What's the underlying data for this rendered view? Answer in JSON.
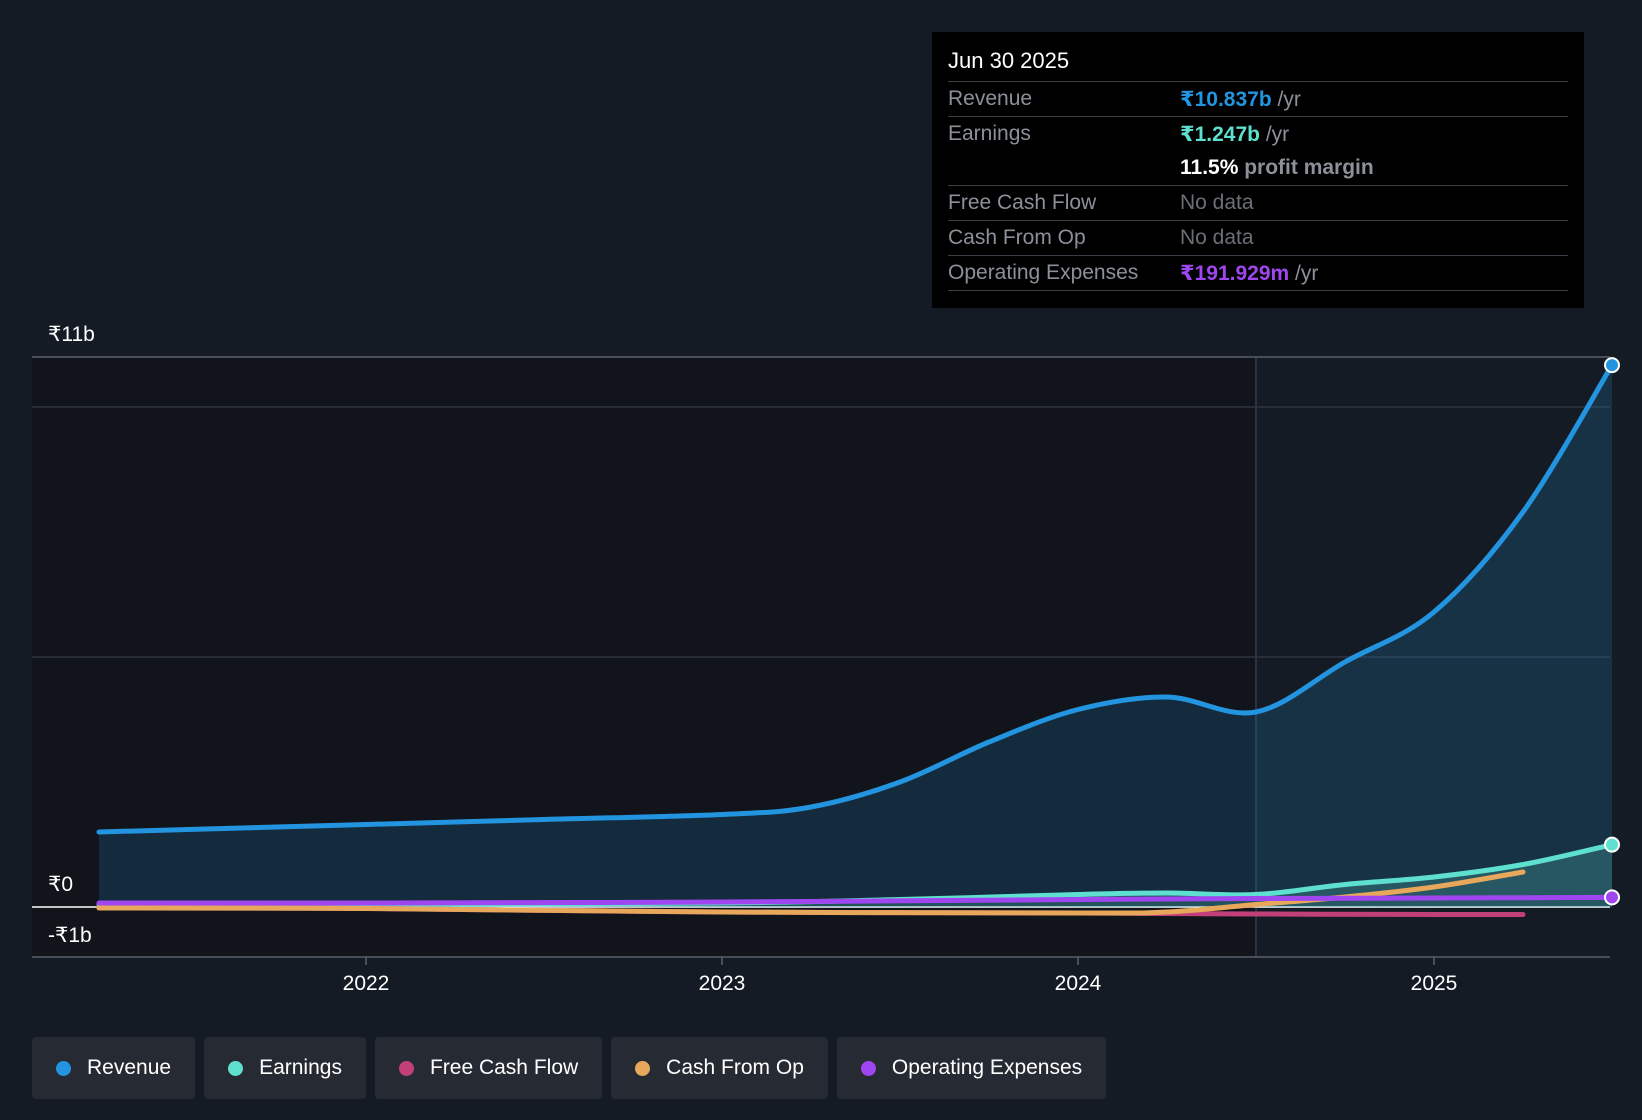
{
  "tooltip": {
    "date": "Jun 30 2025",
    "rows": [
      {
        "label": "Revenue",
        "value": "₹10.837b",
        "suffix": " /yr"
      },
      {
        "label": "Earnings",
        "value": "₹1.247b",
        "suffix": " /yr"
      },
      {
        "label": "",
        "value": "11.5%",
        "suffix": " profit margin"
      },
      {
        "label": "Free Cash Flow",
        "value": "No data",
        "suffix": ""
      },
      {
        "label": "Cash From Op",
        "value": "No data",
        "suffix": ""
      },
      {
        "label": "Operating Expenses",
        "value": "₹191.929m",
        "suffix": " /yr"
      }
    ]
  },
  "legend": [
    {
      "label": "Revenue",
      "color": "#2394df"
    },
    {
      "label": "Earnings",
      "color": "#5fe0cf"
    },
    {
      "label": "Free Cash Flow",
      "color": "#c2407a"
    },
    {
      "label": "Cash From Op",
      "color": "#e8a85c"
    },
    {
      "label": "Operating Expenses",
      "color": "#a046f0"
    }
  ],
  "chart_data": {
    "type": "line",
    "y_tick_labels": [
      "₹11b",
      "₹0",
      "-₹1b"
    ],
    "y_ticks": [
      11,
      0,
      -1
    ],
    "ylim": [
      -1,
      11
    ],
    "x_tick_labels": [
      "2022",
      "2023",
      "2024",
      "2025"
    ],
    "x_ticks": [
      2022,
      2023,
      2024,
      2025
    ],
    "xlim": [
      2021.07,
      2025.5
    ],
    "forecast_start": 2024.5,
    "grid": true,
    "legend_position": "bottom",
    "series": [
      {
        "name": "Revenue",
        "color": "#2394df",
        "area": true,
        "end_marker": true,
        "x": [
          2021.25,
          2021.5,
          2022.0,
          2022.5,
          2023.0,
          2023.25,
          2023.5,
          2023.75,
          2024.0,
          2024.25,
          2024.5,
          2024.75,
          2025.0,
          2025.25,
          2025.5
        ],
        "y": [
          1.5,
          1.55,
          1.65,
          1.75,
          1.85,
          2.0,
          2.5,
          3.3,
          3.95,
          4.2,
          3.9,
          4.9,
          5.9,
          7.9,
          10.837
        ]
      },
      {
        "name": "Earnings",
        "color": "#5fe0cf",
        "area": true,
        "end_marker": true,
        "x": [
          2021.25,
          2022.0,
          2023.0,
          2023.5,
          2024.0,
          2024.25,
          2024.5,
          2024.75,
          2025.0,
          2025.25,
          2025.5
        ],
        "y": [
          0.05,
          0.05,
          0.08,
          0.15,
          0.25,
          0.28,
          0.25,
          0.45,
          0.6,
          0.85,
          1.247
        ]
      },
      {
        "name": "Free Cash Flow",
        "color": "#c2407a",
        "area": false,
        "end_marker": false,
        "x": [
          2021.25,
          2022.0,
          2023.0,
          2024.0,
          2024.5,
          2025.0,
          2025.25
        ],
        "y": [
          -0.02,
          -0.03,
          -0.1,
          -0.12,
          -0.14,
          -0.15,
          -0.15
        ]
      },
      {
        "name": "Cash From Op",
        "color": "#e8a85c",
        "area": false,
        "end_marker": false,
        "x": [
          2021.25,
          2022.0,
          2023.0,
          2024.0,
          2024.25,
          2024.5,
          2024.75,
          2025.0,
          2025.25
        ],
        "y": [
          -0.02,
          -0.03,
          -0.1,
          -0.12,
          -0.1,
          0.05,
          0.2,
          0.4,
          0.7
        ]
      },
      {
        "name": "Operating Expenses",
        "color": "#a046f0",
        "area": false,
        "end_marker": true,
        "x": [
          2021.25,
          2022.0,
          2023.0,
          2024.0,
          2024.5,
          2025.0,
          2025.5
        ],
        "y": [
          0.08,
          0.08,
          0.1,
          0.15,
          0.17,
          0.18,
          0.191929
        ]
      }
    ]
  }
}
